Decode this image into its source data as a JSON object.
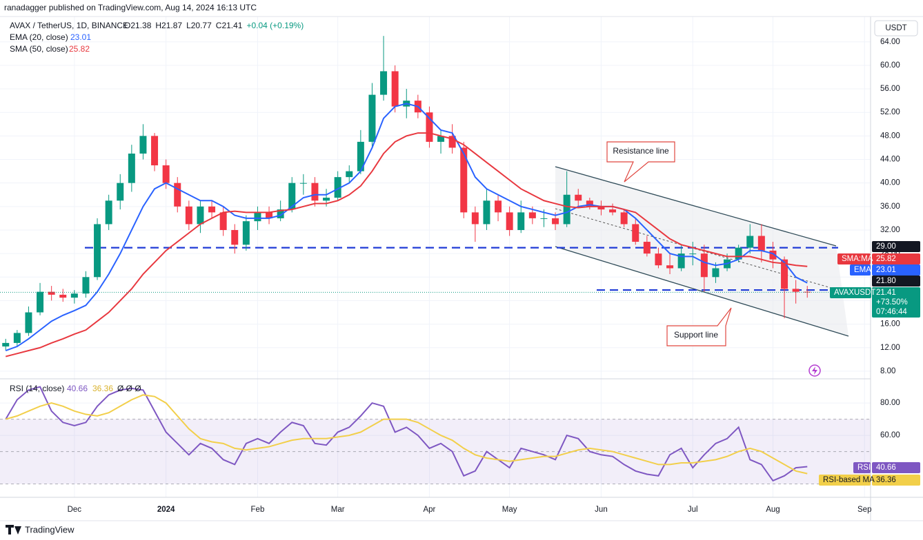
{
  "header": {
    "byline": "ranadagger published on TradingView.com, Aug 14, 2024 16:13 UTC",
    "currency": "USDT",
    "footer": "TradingView"
  },
  "chart_data": [
    {
      "type": "candlestick",
      "legend": {
        "symbol": "AVAX / TetherUS, 1D, BINANCE",
        "ohlc": [
          "O21.38",
          "H21.87",
          "L20.77",
          "C21.41",
          "+0.04 (+0.19%)"
        ]
      },
      "categories": [
        null,
        null,
        null,
        null,
        null,
        null,
        "Dec",
        null,
        null,
        null,
        null,
        null,
        null,
        null,
        "2024",
        null,
        null,
        null,
        null,
        null,
        null,
        null,
        "Feb",
        null,
        null,
        null,
        null,
        null,
        null,
        "Mar",
        null,
        null,
        null,
        null,
        null,
        null,
        null,
        "Apr",
        null,
        null,
        null,
        null,
        null,
        null,
        "May",
        null,
        null,
        null,
        null,
        null,
        null,
        null,
        "Jun",
        null,
        null,
        null,
        null,
        null,
        null,
        null,
        "Jul",
        null,
        null,
        null,
        null,
        null,
        null,
        "Aug",
        null,
        null,
        null,
        null,
        null,
        null,
        null,
        "Sep"
      ],
      "open": [
        12.2,
        12.8,
        14.5,
        18,
        21.5,
        21,
        20.5,
        21.2,
        24,
        33,
        37,
        40,
        45,
        48,
        43,
        40,
        36,
        33,
        36,
        35,
        32,
        29.5,
        33.5,
        35,
        34,
        35.5,
        40,
        40,
        37,
        37.5,
        41,
        42,
        47,
        55,
        59,
        53,
        54,
        52,
        47,
        48,
        46,
        35,
        33,
        37,
        35,
        32,
        35,
        34,
        34,
        33,
        38,
        37,
        36,
        35.5,
        35,
        33,
        30,
        28,
        26,
        25.5,
        28,
        28,
        24,
        25.5,
        27,
        29,
        31,
        28.5,
        27,
        22,
        21.5,
        null,
        null,
        null,
        null,
        null
      ],
      "high": [
        13.5,
        15,
        19,
        23,
        22.5,
        22,
        21.8,
        25,
        34,
        38,
        41.5,
        46.5,
        50,
        48.5,
        44,
        41,
        37,
        37,
        37,
        36,
        33,
        34.5,
        36,
        36,
        37,
        41,
        41.5,
        41,
        39,
        42,
        43,
        49,
        57,
        65,
        60,
        56,
        55,
        53,
        49,
        50,
        47,
        36,
        39,
        38,
        36,
        37,
        36,
        35.5,
        35,
        42,
        39,
        37.5,
        37,
        36.5,
        35.5,
        34,
        31,
        29,
        28,
        29.5,
        30,
        29.5,
        26.5,
        28,
        29.5,
        33,
        33,
        30,
        27.5,
        23.5,
        22.5,
        null,
        null,
        null,
        null,
        null
      ],
      "low": [
        11.5,
        12.3,
        14,
        17.5,
        20,
        19.8,
        19.5,
        20.5,
        23.5,
        32,
        35.5,
        38.5,
        44,
        42,
        39,
        35,
        32,
        31.5,
        34,
        31,
        28,
        28.5,
        32,
        33,
        33.5,
        35,
        38,
        36,
        36,
        37,
        40,
        41.5,
        46,
        54,
        52,
        51,
        51,
        46,
        45,
        45,
        34,
        30,
        32,
        33.5,
        31,
        31.5,
        33,
        32.5,
        32,
        32.5,
        36,
        35.5,
        34.5,
        34.5,
        32.5,
        29.5,
        27.5,
        25.5,
        24.5,
        25,
        26,
        21.5,
        23,
        25,
        26.5,
        28,
        26.5,
        25.5,
        17,
        19.5,
        20.5,
        null,
        null,
        null,
        null,
        null
      ],
      "close": [
        12.8,
        14.5,
        18,
        21.5,
        21,
        20.5,
        21.2,
        24,
        33,
        37,
        40,
        45,
        48,
        43,
        40,
        36,
        33,
        36,
        35,
        32,
        29.5,
        33.5,
        35,
        34,
        35.5,
        40,
        40,
        37,
        37.5,
        41,
        42,
        47,
        55,
        59,
        53,
        54,
        52,
        47,
        48,
        46,
        35,
        33,
        37,
        35,
        32,
        35,
        34,
        34,
        33,
        38,
        37,
        36,
        35.5,
        35,
        33,
        30,
        28,
        26,
        25.5,
        28,
        28,
        24,
        25.5,
        27,
        29,
        31,
        28.5,
        27,
        22,
        21.5,
        21.41,
        null,
        null,
        null,
        null,
        null
      ],
      "up_color": "#089981",
      "down_color": "#f23645",
      "series": [
        {
          "name": "EMA (20, close)",
          "tag": "EMA",
          "color": "#2962ff",
          "values": [
            11.5,
            12.2,
            13.5,
            15,
            16.5,
            17.5,
            18.3,
            19.2,
            21.5,
            24.5,
            28,
            32,
            36,
            39,
            40,
            39,
            38,
            37,
            37,
            36,
            34.5,
            34,
            34,
            34,
            34.5,
            36,
            37.5,
            38,
            38,
            39,
            40,
            42,
            46,
            51,
            53,
            53.5,
            53,
            51,
            49,
            48.5,
            45,
            41,
            39,
            38,
            37,
            36,
            35.5,
            35,
            34.5,
            35,
            36,
            36.3,
            36,
            36,
            35.5,
            34,
            32,
            30,
            28,
            27.5,
            27.5,
            26.5,
            26,
            26.3,
            27,
            28.5,
            28.5,
            28,
            26.5,
            24,
            23.01,
            null,
            null,
            null,
            null,
            null
          ]
        },
        {
          "name": "SMA (50, close)",
          "tag": "SMA:MA",
          "color": "#e8383f",
          "values": [
            10.5,
            11,
            11.5,
            12,
            12.8,
            13.5,
            14.3,
            15,
            16.5,
            18,
            20,
            22,
            24.5,
            26.5,
            28.5,
            30,
            31.5,
            33,
            34,
            35,
            35.2,
            35,
            35,
            35,
            35.3,
            35.5,
            36,
            36.5,
            36.5,
            37,
            38,
            39.5,
            42,
            45,
            47,
            48,
            48.5,
            48.5,
            48,
            47.5,
            46.5,
            45,
            43.5,
            42,
            40.5,
            39,
            38,
            37,
            36.5,
            36,
            35.8,
            36,
            36,
            36,
            35.5,
            35,
            33.5,
            32,
            30.5,
            29.5,
            29,
            28.5,
            28,
            27.5,
            27.5,
            27.5,
            27,
            26.5,
            26.3,
            26,
            25.82,
            null,
            null,
            null,
            null,
            null
          ]
        }
      ],
      "last_tag": {
        "name": "AVAXUSDT",
        "change": "+73.50%",
        "countdown": "07:46:44"
      },
      "levels": [
        {
          "value": 29,
          "label": "29.00"
        },
        {
          "value": 21.8,
          "label": "21.80"
        }
      ],
      "annotations": [
        "Resistance line",
        "Support line"
      ],
      "ylim": [
        6.7,
        67.6
      ],
      "yticks": [
        {
          "value": 8,
          "label": "8.00"
        },
        {
          "value": 12,
          "label": "12.00"
        },
        {
          "value": 16,
          "label": "16.00"
        },
        {
          "value": 20,
          "label": "20.00"
        },
        {
          "value": 24,
          "label": "24.00"
        },
        {
          "value": 28,
          "label": "28.00"
        },
        {
          "value": 32,
          "label": "32.00"
        },
        {
          "value": 36,
          "label": "36.00"
        },
        {
          "value": 40,
          "label": "40.00"
        },
        {
          "value": 44,
          "label": "44.00"
        },
        {
          "value": 48,
          "label": "48.00"
        },
        {
          "value": 52,
          "label": "52.00"
        },
        {
          "value": 56,
          "label": "56.00"
        },
        {
          "value": 60,
          "label": "60.00"
        },
        {
          "value": 64,
          "label": "64.00"
        }
      ],
      "grid": true
    },
    {
      "type": "line",
      "legend": {
        "name": "RSI (14, close)",
        "extra": "Ø Ø Ø"
      },
      "series": [
        {
          "name": "RSI",
          "color": "#7e57c2",
          "values": [
            70,
            82,
            88,
            90,
            75,
            68,
            66,
            68,
            78,
            85,
            88,
            89,
            88,
            75,
            62,
            55,
            48,
            55,
            52,
            45,
            42,
            55,
            58,
            55,
            62,
            68,
            66,
            55,
            54,
            62,
            65,
            72,
            80,
            78,
            62,
            65,
            60,
            52,
            55,
            50,
            35,
            38,
            50,
            45,
            40,
            52,
            50,
            48,
            45,
            60,
            58,
            50,
            48,
            47,
            42,
            38,
            36,
            35,
            48,
            52,
            40,
            48,
            55,
            58,
            65,
            45,
            42,
            32,
            35,
            40,
            40.66,
            null,
            null,
            null,
            null,
            null
          ]
        },
        {
          "name": "RSI-based MA",
          "color": "#f2cf4a",
          "values": [
            70,
            72,
            75,
            78,
            80,
            78,
            75,
            73,
            72,
            74,
            78,
            82,
            85,
            84,
            80,
            72,
            64,
            58,
            56,
            55,
            52,
            51,
            52,
            53,
            55,
            57,
            58,
            58,
            58,
            59,
            60,
            62,
            66,
            70,
            70,
            70,
            68,
            64,
            60,
            57,
            52,
            48,
            46,
            45,
            44,
            45,
            46,
            47,
            47,
            49,
            51,
            52,
            51,
            50,
            48,
            46,
            44,
            42,
            42,
            43,
            43,
            44,
            45,
            47,
            50,
            52,
            50,
            46,
            42,
            38,
            36.36,
            null,
            null,
            null,
            null,
            null
          ]
        }
      ],
      "levels": [
        30,
        50,
        70
      ],
      "ylim": [
        22.6,
        92.8
      ],
      "yticks": [
        {
          "value": 60,
          "label": "60.00"
        },
        {
          "value": 80,
          "label": "80.00"
        }
      ]
    }
  ]
}
